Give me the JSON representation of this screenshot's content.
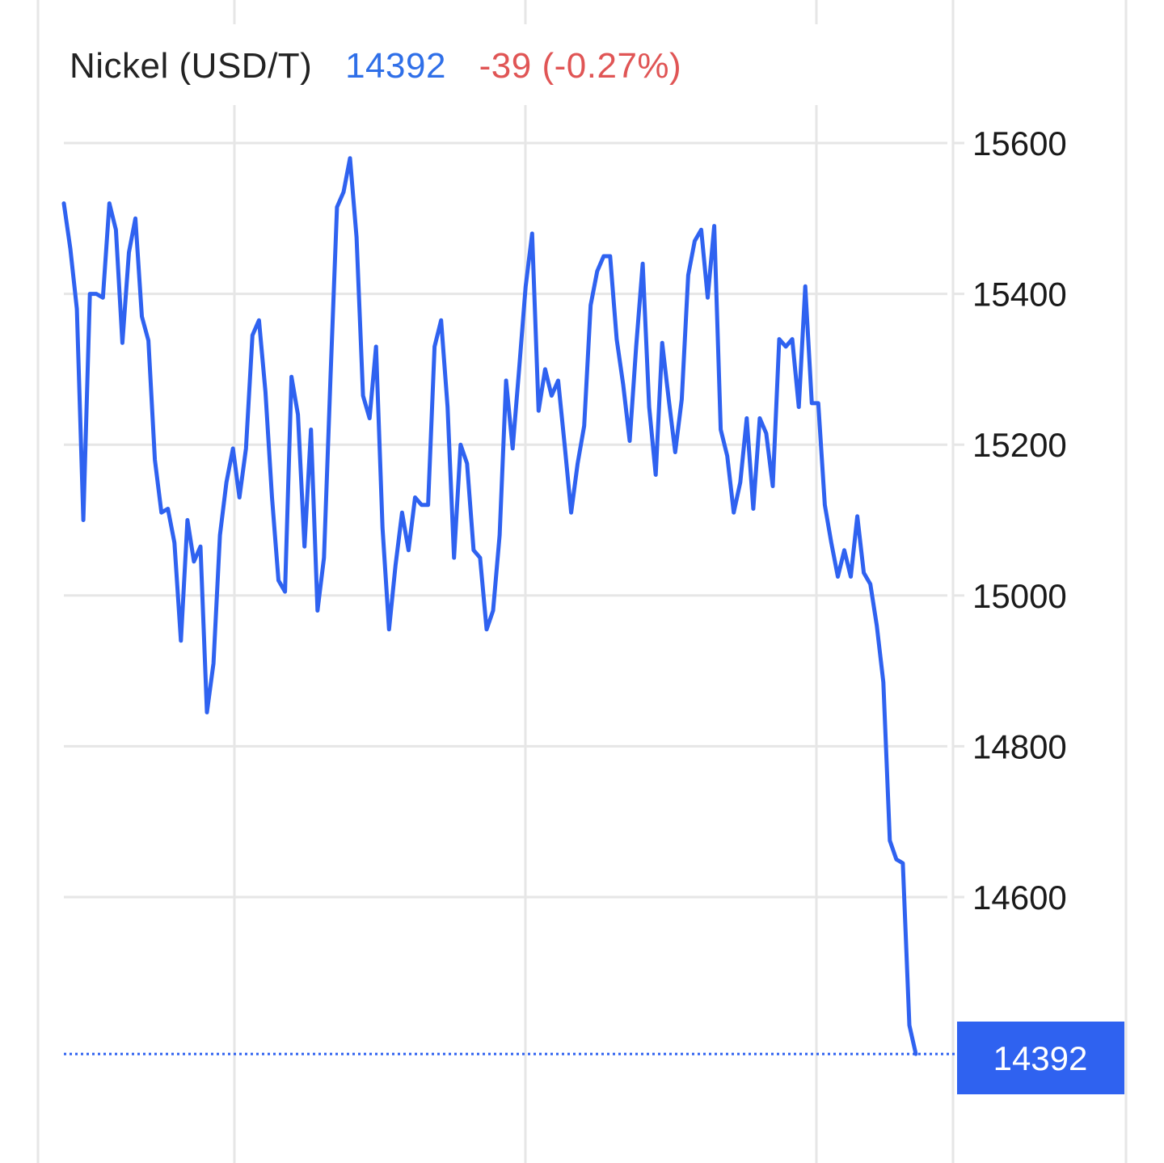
{
  "header": {
    "instrument": "Nickel (USD/T)",
    "last_price": "14392",
    "change": "-39 (-0.27%)"
  },
  "colors": {
    "line": "#2f62f0",
    "price_text": "#2f6fe8",
    "change_text": "#e05555",
    "gridline": "#e6e6e6",
    "price_tag_bg": "#2f62f0"
  },
  "chart_data": {
    "type": "line",
    "title": "Nickel (USD/T)",
    "xlabel": "",
    "ylabel": "",
    "ylim": [
      14350,
      15730
    ],
    "y_ticks": [
      15600,
      15400,
      15200,
      15000,
      14800,
      14600
    ],
    "y_tick_labels": [
      "15600",
      "15400",
      "15200",
      "15000",
      "14800",
      "14600"
    ],
    "last_value_label": "14392",
    "grid": true,
    "legend": "none",
    "series": [
      {
        "values": [
          15520,
          15460,
          15380,
          15100,
          15400,
          15400,
          15395,
          15520,
          15485,
          15335,
          15455,
          15500,
          15370,
          15338,
          15180,
          15110,
          15115,
          15070,
          14940,
          15100,
          15045,
          15065,
          14845,
          14910,
          15080,
          15150,
          15195,
          15130,
          15195,
          15345,
          15365,
          15270,
          15130,
          15020,
          15005,
          15290,
          15240,
          15065,
          15220,
          14980,
          15050,
          15290,
          15515,
          15535,
          15580,
          15475,
          15265,
          15235,
          15330,
          15090,
          14955,
          15040,
          15110,
          15060,
          15130,
          15120,
          15120,
          15330,
          15365,
          15250,
          15050,
          15200,
          15175,
          15060,
          15050,
          14955,
          14980,
          15080,
          15285,
          15195,
          15300,
          15410,
          15480,
          15245,
          15300,
          15265,
          15285,
          15200,
          15110,
          15175,
          15225,
          15385,
          15430,
          15450,
          15450,
          15340,
          15280,
          15205,
          15330,
          15440,
          15250,
          15160,
          15335,
          15260,
          15190,
          15260,
          15425,
          15470,
          15485,
          15395,
          15490,
          15220,
          15185,
          15110,
          15150,
          15235,
          15115,
          15235,
          15215,
          15145,
          15340,
          15330,
          15340,
          15250,
          15410,
          15255,
          15255,
          15120,
          15070,
          15025,
          15060,
          15025,
          15105,
          15030,
          15015,
          14960,
          14885,
          14675,
          14650,
          14645,
          14430,
          14392
        ]
      }
    ]
  }
}
